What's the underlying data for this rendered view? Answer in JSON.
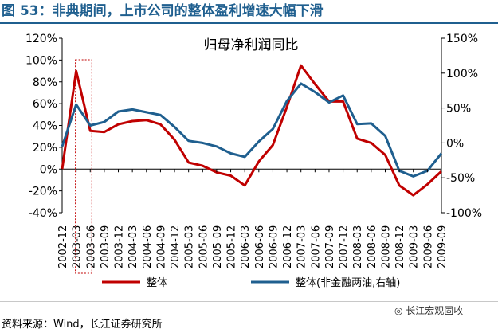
{
  "figure": {
    "title": "图 53：非典期间，上市公司的整体盈利增速大幅下滑",
    "source": "资料来源：Wind，长江证券研究所",
    "watermark": "长江宏观固收"
  },
  "chart_data": {
    "type": "line",
    "title": "归母净利润同比",
    "x": [
      "2002-12",
      "2003-03",
      "2003-06",
      "2003-09",
      "2003-12",
      "2004-03",
      "2004-06",
      "2004-09",
      "2004-12",
      "2005-03",
      "2005-06",
      "2005-09",
      "2005-12",
      "2006-03",
      "2006-06",
      "2006-09",
      "2006-12",
      "2007-03",
      "2007-06",
      "2007-09",
      "2007-12",
      "2008-03",
      "2008-06",
      "2008-09",
      "2008-12",
      "2009-03",
      "2009-06",
      "2009-09"
    ],
    "y_left": {
      "min": -40,
      "max": 120,
      "step": 20,
      "tick_labels": [
        "-40%",
        "-20%",
        "0%",
        "20%",
        "40%",
        "60%",
        "80%",
        "100%",
        "120%"
      ]
    },
    "y_right": {
      "min": -100,
      "max": 150,
      "step": 50,
      "tick_labels": [
        "-100%",
        "-50%",
        "0%",
        "50%",
        "100%",
        "150%"
      ]
    },
    "series": [
      {
        "name": "整体",
        "axis": "left",
        "color": "#c00000",
        "values": [
          0,
          90,
          35,
          34,
          41,
          44,
          45,
          41,
          27,
          6,
          3,
          -3,
          -6,
          -15,
          7,
          22,
          57,
          95,
          78,
          62,
          62,
          28,
          24,
          13,
          -15,
          -24,
          -14,
          -2
        ]
      },
      {
        "name": "整体(非金融两油,右轴)",
        "axis": "right",
        "color": "#1f5f8f",
        "values": [
          -5,
          55,
          25,
          30,
          45,
          48,
          44,
          40,
          23,
          3,
          0,
          -5,
          -15,
          -20,
          2,
          20,
          60,
          85,
          73,
          58,
          68,
          27,
          28,
          10,
          -40,
          -48,
          -40,
          -15
        ]
      }
    ],
    "highlight": {
      "from": "2003-03",
      "to": "2003-06",
      "color": "#c00000"
    },
    "legend_position": "bottom",
    "grid": false
  }
}
